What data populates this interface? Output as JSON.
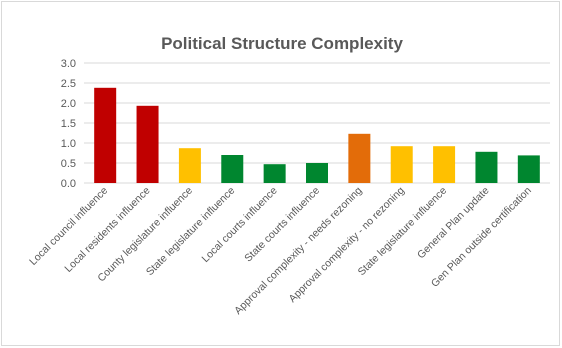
{
  "chart_data": {
    "type": "bar",
    "title": "Political Structure Complexity",
    "xlabel": "",
    "ylabel": "",
    "ylim": [
      0,
      3.0
    ],
    "yticks": [
      "0.0",
      "0.5",
      "1.0",
      "1.5",
      "2.0",
      "2.5",
      "3.0"
    ],
    "grid": true,
    "legend": "none",
    "categories": [
      "Local council influence",
      "Local residents influence",
      "County legislature influence",
      "State legislature influence",
      "Local courts influence",
      "State courts influence",
      "Approval complexity - needs rezoning",
      "Approval complexity - no rezoning",
      "State legislature influence",
      "General Plan update",
      "Gen Plan outside certification"
    ],
    "values": [
      2.38,
      1.93,
      0.87,
      0.7,
      0.47,
      0.5,
      1.23,
      0.92,
      0.92,
      0.78,
      0.69
    ],
    "bar_colors": [
      "#c00000",
      "#c00000",
      "#ffc000",
      "#00862f",
      "#00862f",
      "#00862f",
      "#e36c09",
      "#ffc000",
      "#ffc000",
      "#00862f",
      "#00862f"
    ],
    "grid_color": "#d9d9d9",
    "text_color": "#595959"
  }
}
